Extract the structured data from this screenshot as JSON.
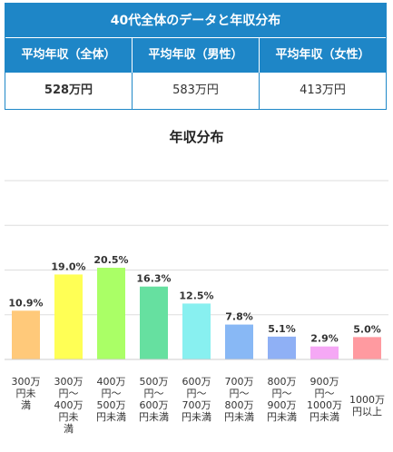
{
  "table": {
    "title": "40代全体のデータと年収分布",
    "headers": [
      "平均年収（全体）",
      "平均年収（男性）",
      "平均年収（女性）"
    ],
    "values": [
      "528万円",
      "583万円",
      "413万円"
    ],
    "header_color": "#1e86c7"
  },
  "chart_data": {
    "type": "bar",
    "title": "年収分布",
    "categories": [
      "300万円未満",
      "300万円～400万円未満",
      "400万円～500万円未満",
      "500万円～600万円未満",
      "600万円～700万円未満",
      "700万円～800万円未満",
      "800万円～900万円未満",
      "900万円～1000万円未満",
      "1000万円以上"
    ],
    "category_lines": [
      [
        "300万",
        "円未",
        "満"
      ],
      [
        "300万",
        "円～",
        "400万",
        "円未",
        "満"
      ],
      [
        "400万",
        "円～",
        "500万",
        "円未満"
      ],
      [
        "500万",
        "円～",
        "600万",
        "円未満"
      ],
      [
        "600万",
        "円～",
        "700万",
        "円未満"
      ],
      [
        "700万",
        "円～",
        "800万",
        "円未満"
      ],
      [
        "800万",
        "円～",
        "900万",
        "円未満"
      ],
      [
        "900万",
        "円～",
        "1000万",
        "円未満"
      ],
      [
        "1000万",
        "円以上"
      ]
    ],
    "values": [
      10.9,
      19.0,
      20.5,
      16.3,
      12.5,
      7.8,
      5.1,
      2.9,
      5.0
    ],
    "value_labels": [
      "10.9%",
      "19.0%",
      "20.5%",
      "16.3%",
      "12.5%",
      "7.8%",
      "5.1%",
      "2.9%",
      "5.0%"
    ],
    "colors": [
      "#ffc97a",
      "#ffff55",
      "#aaff66",
      "#66e0a0",
      "#88f0f0",
      "#88b8f5",
      "#8fb0f5",
      "#f5a8f5",
      "#ff9aa0"
    ],
    "ylim": [
      0,
      40
    ],
    "grid": true
  }
}
